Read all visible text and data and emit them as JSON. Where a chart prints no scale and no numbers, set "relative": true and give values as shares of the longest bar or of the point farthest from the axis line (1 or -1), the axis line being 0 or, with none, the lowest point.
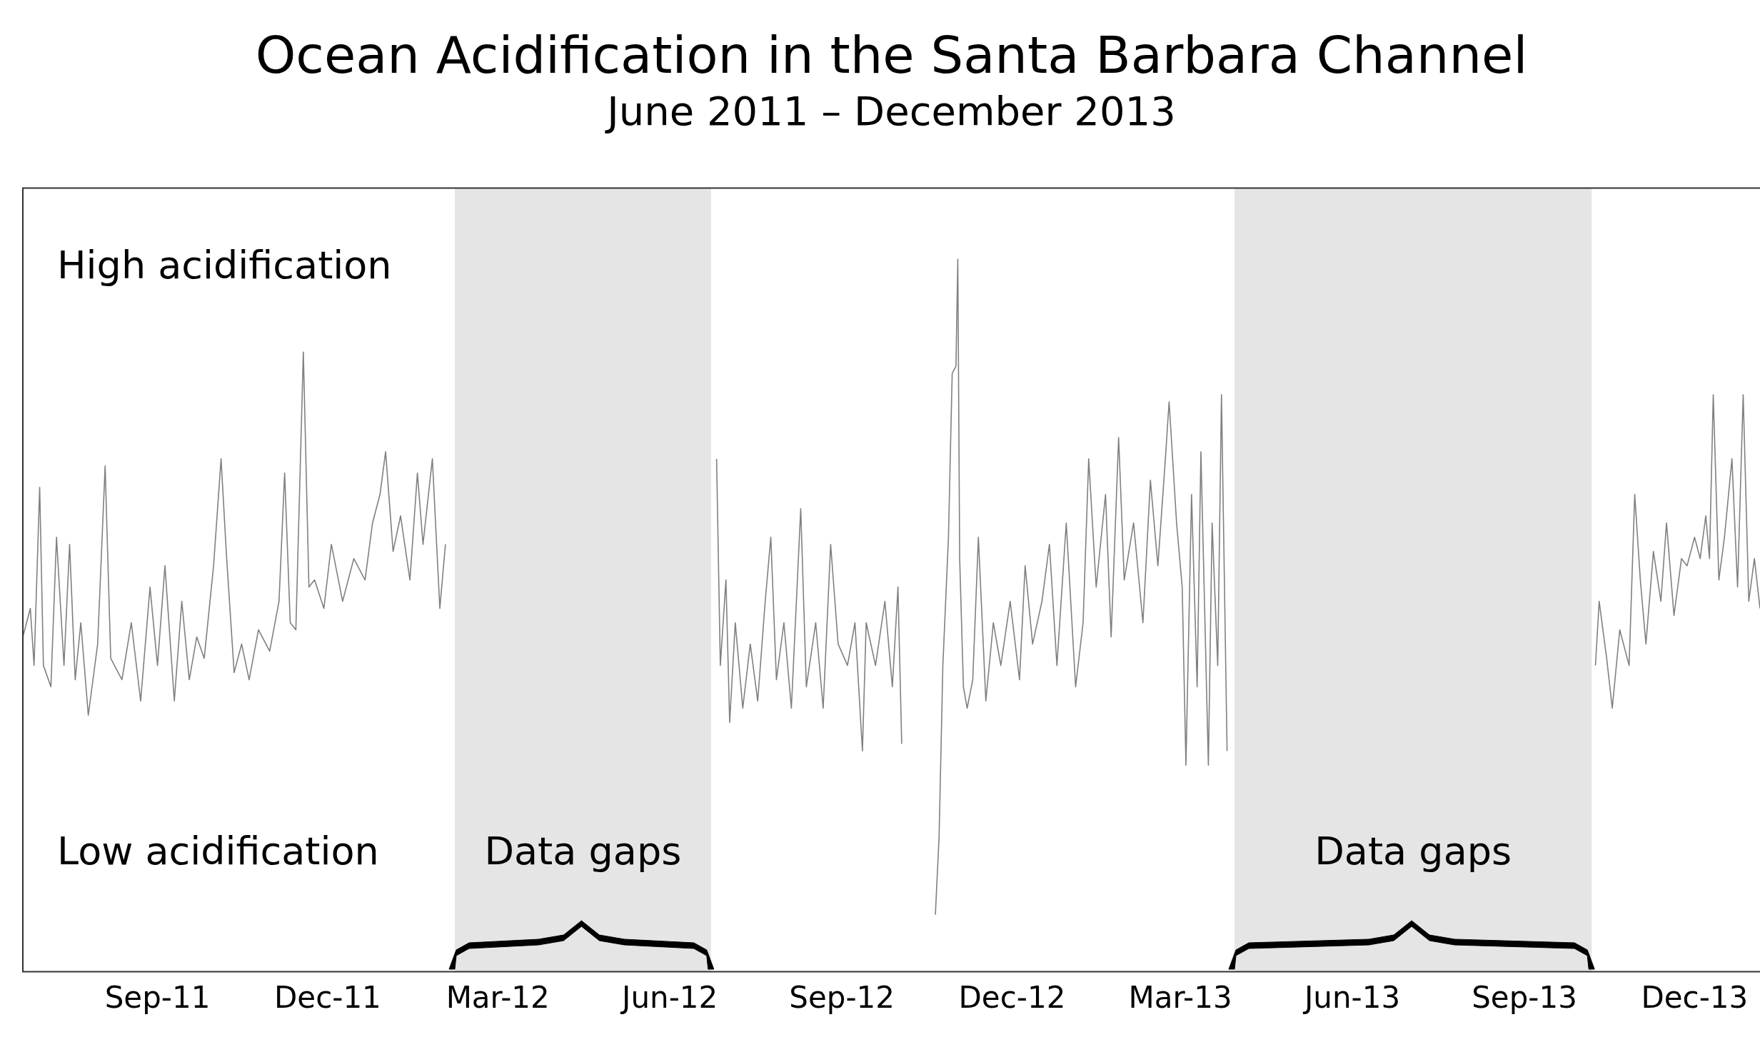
{
  "chart_data": {
    "type": "line",
    "title": "Ocean Acidification in the Santa Barbara Channel",
    "subtitle": "June 2011 – December 2013",
    "relative": true,
    "tick_labels": "x",
    "grid": false,
    "legend": false,
    "marker": "none",
    "line_style": "solid",
    "xlim": [
      "2011-06-21",
      "2014-01-05"
    ],
    "xticks": [
      {
        "value": "2011-09-01",
        "label": "Sep-11"
      },
      {
        "value": "2011-12-01",
        "label": "Dec-11"
      },
      {
        "value": "2012-03-01",
        "label": "Mar-12"
      },
      {
        "value": "2012-06-01",
        "label": "Jun-12"
      },
      {
        "value": "2012-09-01",
        "label": "Sep-12"
      },
      {
        "value": "2012-12-01",
        "label": "Dec-12"
      },
      {
        "value": "2013-03-01",
        "label": "Mar-13"
      },
      {
        "value": "2013-06-01",
        "label": "Jun-13"
      },
      {
        "value": "2013-09-01",
        "label": "Sep-13"
      },
      {
        "value": "2013-12-01",
        "label": "Dec-13"
      }
    ],
    "x": [
      "2011-06-21",
      "2011-06-25",
      "2011-06-27",
      "2011-06-30",
      "2011-07-02",
      "2011-07-06",
      "2011-07-09",
      "2011-07-13",
      "2011-07-16",
      "2011-07-19",
      "2011-07-22",
      "2011-07-26",
      "2011-07-31",
      "2011-08-04",
      "2011-08-07",
      "2011-08-13",
      "2011-08-18",
      "2011-08-23",
      "2011-08-28",
      "2011-09-01",
      "2011-09-05",
      "2011-09-10",
      "2011-09-14",
      "2011-09-18",
      "2011-09-22",
      "2011-09-26",
      "2011-10-01",
      "2011-10-05",
      "2011-10-08",
      "2011-10-12",
      "2011-10-16",
      "2011-10-20",
      "2011-10-25",
      "2011-10-31",
      "2011-11-05",
      "2011-11-08",
      "2011-11-11",
      "2011-11-14",
      "2011-11-18",
      "2011-11-21",
      "2011-11-24",
      "2011-11-29",
      "2011-12-03",
      "2011-12-09",
      "2011-12-15",
      "2011-12-21",
      "2011-12-25",
      "2011-12-29",
      "2012-01-01",
      "2012-01-05",
      "2012-01-09",
      "2012-01-14",
      "2012-01-18",
      "2012-01-21",
      "2012-01-26",
      "2012-01-30",
      "2012-02-02",
      "2012-04-15",
      "2012-06-26",
      "2012-06-28",
      "2012-07-01",
      "2012-07-03",
      "2012-07-06",
      "2012-07-10",
      "2012-07-14",
      "2012-07-18",
      "2012-07-22",
      "2012-07-25",
      "2012-07-28",
      "2012-08-01",
      "2012-08-05",
      "2012-08-10",
      "2012-08-13",
      "2012-08-18",
      "2012-08-22",
      "2012-08-26",
      "2012-08-30",
      "2012-09-04",
      "2012-09-08",
      "2012-09-12",
      "2012-09-14",
      "2012-09-19",
      "2012-09-24",
      "2012-09-28",
      "2012-10-01",
      "2012-10-03",
      "2012-10-12",
      "2012-10-21",
      "2012-10-23",
      "2012-10-25",
      "2012-10-28",
      "2012-10-30",
      "2012-11-01",
      "2012-11-02",
      "2012-11-03",
      "2012-11-05",
      "2012-11-07",
      "2012-11-10",
      "2012-11-13",
      "2012-11-17",
      "2012-11-21",
      "2012-11-25",
      "2012-11-30",
      "2012-12-05",
      "2012-12-08",
      "2012-12-12",
      "2012-12-17",
      "2012-12-21",
      "2012-12-25",
      "2012-12-30",
      "2013-01-04",
      "2013-01-08",
      "2013-01-11",
      "2013-01-15",
      "2013-01-20",
      "2013-01-23",
      "2013-01-27",
      "2013-01-30",
      "2013-02-04",
      "2013-02-09",
      "2013-02-13",
      "2013-02-17",
      "2013-02-21",
      "2013-02-23",
      "2013-02-27",
      "2013-03-02",
      "2013-03-04",
      "2013-03-07",
      "2013-03-10",
      "2013-03-12",
      "2013-03-16",
      "2013-03-18",
      "2013-03-21",
      "2013-03-23",
      "2013-03-26",
      "2013-07-01",
      "2013-10-09",
      "2013-10-11",
      "2013-10-15",
      "2013-10-18",
      "2013-10-22",
      "2013-10-27",
      "2013-10-30",
      "2013-11-02",
      "2013-11-05",
      "2013-11-09",
      "2013-11-13",
      "2013-11-16",
      "2013-11-20",
      "2013-11-24",
      "2013-11-27",
      "2013-12-01",
      "2013-12-04",
      "2013-12-07",
      "2013-12-09",
      "2013-12-11",
      "2013-12-14",
      "2013-12-17",
      "2013-12-21",
      "2013-12-24",
      "2013-12-27",
      "2013-12-30",
      "2014-01-02",
      "2014-01-05"
    ],
    "series": [
      {
        "color": "#808080",
        "values": [
          0.47,
          0.51,
          0.43,
          0.68,
          0.43,
          0.4,
          0.61,
          0.43,
          0.6,
          0.41,
          0.49,
          0.36,
          0.46,
          0.71,
          0.44,
          0.41,
          0.49,
          0.38,
          0.54,
          0.43,
          0.57,
          0.38,
          0.52,
          0.41,
          0.47,
          0.44,
          0.57,
          0.72,
          0.58,
          0.42,
          0.46,
          0.41,
          0.48,
          0.45,
          0.52,
          0.7,
          0.49,
          0.48,
          0.87,
          0.54,
          0.55,
          0.51,
          0.6,
          0.52,
          0.58,
          0.55,
          0.63,
          0.67,
          0.73,
          0.59,
          0.64,
          0.55,
          0.7,
          0.6,
          0.72,
          0.51,
          0.6,
          null,
          0.72,
          0.43,
          0.55,
          0.35,
          0.49,
          0.37,
          0.46,
          0.38,
          0.52,
          0.61,
          0.41,
          0.49,
          0.37,
          0.65,
          0.4,
          0.49,
          0.37,
          0.6,
          0.46,
          0.43,
          0.49,
          0.31,
          0.49,
          0.43,
          0.52,
          0.4,
          0.54,
          0.32,
          null,
          0.08,
          0.19,
          0.43,
          0.61,
          0.84,
          0.85,
          1,
          0.58,
          0.4,
          0.37,
          0.41,
          0.61,
          0.38,
          0.49,
          0.43,
          0.52,
          0.41,
          0.57,
          0.46,
          0.52,
          0.6,
          0.43,
          0.63,
          0.4,
          0.49,
          0.72,
          0.54,
          0.67,
          0.47,
          0.75,
          0.55,
          0.63,
          0.49,
          0.69,
          0.57,
          0.72,
          0.8,
          0.63,
          0.54,
          0.29,
          0.67,
          0.4,
          0.73,
          0.29,
          0.63,
          0.43,
          0.81,
          0.31,
          null,
          0.43,
          0.52,
          0.44,
          0.37,
          0.48,
          0.43,
          0.67,
          0.55,
          0.46,
          0.59,
          0.52,
          0.63,
          0.5,
          0.58,
          0.57,
          0.61,
          0.58,
          0.64,
          0.58,
          0.81,
          0.55,
          0.61,
          0.72,
          0.54,
          0.81,
          0.52,
          0.58,
          0.51
        ]
      }
    ],
    "bands": [
      {
        "axis": "x",
        "from": "2012-02-07",
        "to": "2012-06-23",
        "label": "Data gaps",
        "color": "#e5e5e5"
      },
      {
        "axis": "x",
        "from": "2013-03-30",
        "to": "2013-10-07",
        "label": "Data gaps",
        "color": "#e5e5e5"
      }
    ],
    "annotations": [
      "High acidification",
      "Low acidification"
    ]
  }
}
